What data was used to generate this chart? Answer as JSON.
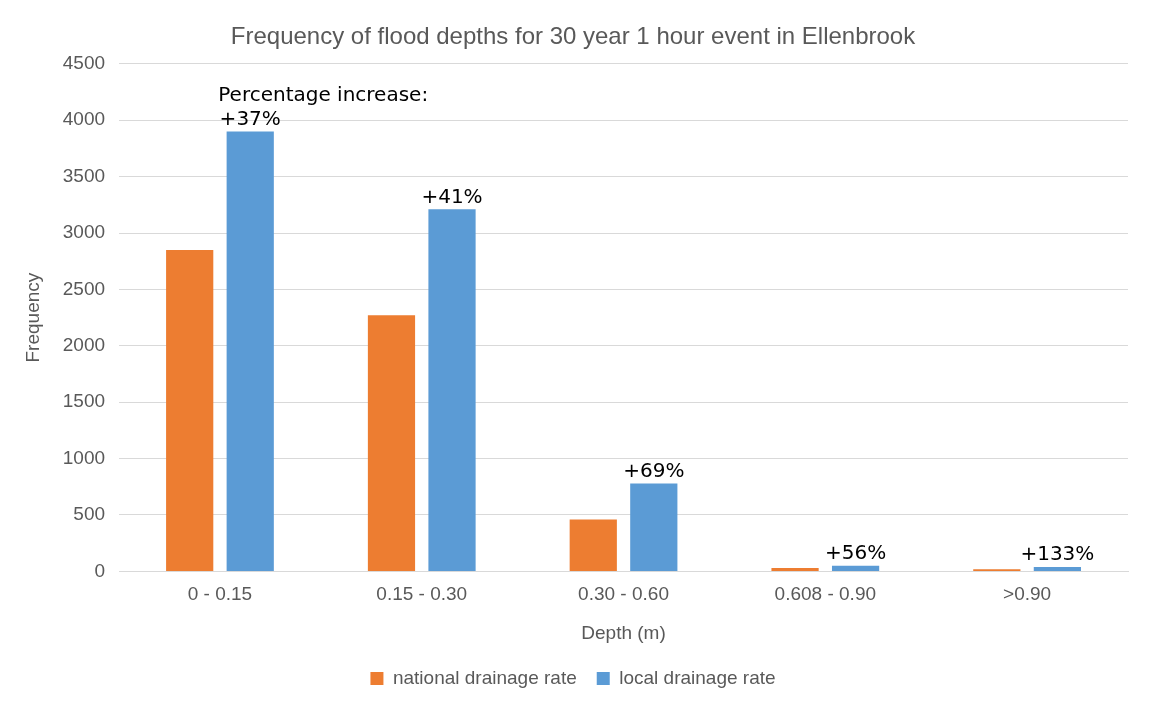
{
  "chart_data": {
    "type": "bar",
    "title": "Frequency of flood depths for 30 year 1 hour event in Ellenbrook",
    "xlabel": "Depth (m)",
    "ylabel": "Frequency",
    "categories": [
      "0 - 0.15",
      "0.15 - 0.30",
      "0.30 - 0.60",
      "0.608 - 0.90",
      ">0.90"
    ],
    "series": [
      {
        "name": "national drainage rate",
        "color": "#ed7d31",
        "values": [
          2850,
          2270,
          460,
          30,
          20
        ]
      },
      {
        "name": "local drainage rate",
        "color": "#5b9bd5",
        "values": [
          3900,
          3210,
          780,
          50,
          40
        ]
      }
    ],
    "ylim": [
      0,
      4500
    ],
    "yticks": [
      0,
      500,
      1000,
      1500,
      2000,
      2500,
      3000,
      3500,
      4000,
      4500
    ],
    "grid": "y",
    "legend": "bottom",
    "annotations": [
      "Percentage increase:",
      "+37%",
      "+41%",
      "+69%",
      "+56%",
      "+133%"
    ]
  }
}
